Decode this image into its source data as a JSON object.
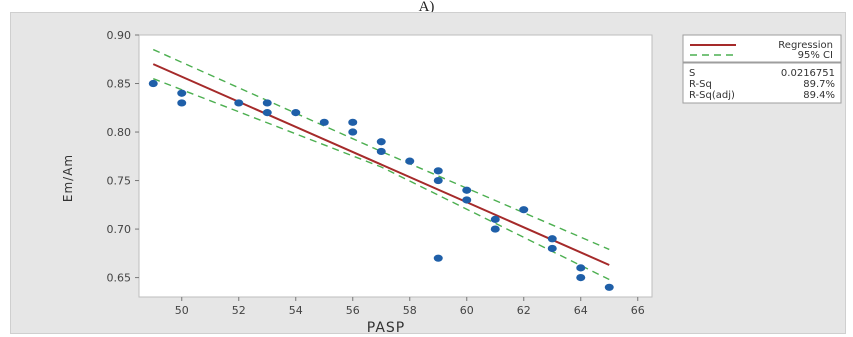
{
  "caption": "A)",
  "chart_data": {
    "type": "scatter",
    "xlabel": "PASP",
    "ylabel": "Em/Am",
    "xlim": [
      48.5,
      66.5
    ],
    "ylim": [
      0.63,
      0.9
    ],
    "xticks": [
      "50",
      "52",
      "54",
      "56",
      "58",
      "60",
      "62",
      "64",
      "66"
    ],
    "yticks": [
      "0.65",
      "0.70",
      "0.75",
      "0.80",
      "0.85",
      "0.90"
    ],
    "grid": false,
    "legend_position": "right",
    "points": {
      "x": [
        49,
        50,
        50,
        52,
        53,
        53,
        54,
        55,
        56,
        56,
        57,
        57,
        58,
        59,
        59,
        59,
        60,
        60,
        61,
        61,
        62,
        63,
        63,
        64,
        64,
        65
      ],
      "y": [
        0.85,
        0.84,
        0.83,
        0.83,
        0.83,
        0.82,
        0.82,
        0.81,
        0.81,
        0.8,
        0.79,
        0.78,
        0.77,
        0.76,
        0.75,
        0.67,
        0.74,
        0.73,
        0.71,
        0.7,
        0.72,
        0.69,
        0.68,
        0.66,
        0.65,
        0.64
      ],
      "color": "#1f5fa8"
    },
    "regression": {
      "name": "Regression",
      "x": [
        49,
        65
      ],
      "y": [
        0.87,
        0.663
      ],
      "color": "#a52a2a"
    },
    "ci": {
      "name": "95% CI",
      "upper": {
        "x": [
          49,
          57,
          65
        ],
        "y": [
          0.885,
          0.78,
          0.679
        ]
      },
      "lower": {
        "x": [
          49,
          57,
          65
        ],
        "y": [
          0.855,
          0.764,
          0.648
        ]
      },
      "color": "#4caf50"
    },
    "stats": [
      {
        "label": "S",
        "value": "0.0216751"
      },
      {
        "label": "R-Sq",
        "value": "89.7%"
      },
      {
        "label": "R-Sq(adj)",
        "value": "89.4%"
      }
    ]
  }
}
